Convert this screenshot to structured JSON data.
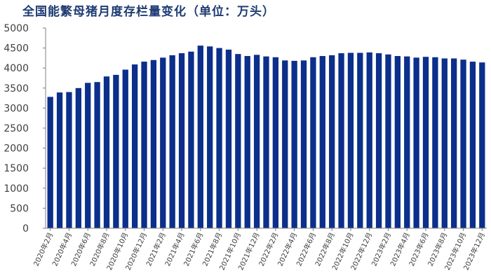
{
  "chart_data": {
    "type": "bar",
    "title": "全国能繁母猪月度存栏量变化（单位：万头）",
    "xlabel": "",
    "ylabel": "",
    "ylim": [
      0,
      5000
    ],
    "yticks": [
      0,
      500,
      1000,
      1500,
      2000,
      2500,
      3000,
      3500,
      4000,
      4500,
      5000
    ],
    "grid": false,
    "legend": "none",
    "bar_color": "#0b2f8a",
    "categories": [
      "2020年2月",
      "2020年3月",
      "2020年4月",
      "2020年5月",
      "2020年6月",
      "2020年7月",
      "2020年8月",
      "2020年9月",
      "2020年10月",
      "2020年11月",
      "2020年12月",
      "2021年1月",
      "2021年2月",
      "2021年3月",
      "2021年4月",
      "2021年5月",
      "2021年6月",
      "2021年7月",
      "2021年8月",
      "2021年9月",
      "2021年10月",
      "2021年11月",
      "2021年12月",
      "2022年1月",
      "2022年2月",
      "2022年3月",
      "2022年4月",
      "2022年5月",
      "2022年6月",
      "2022年7月",
      "2022年8月",
      "2022年9月",
      "2022年10月",
      "2022年11月",
      "2022年12月",
      "2023年1月",
      "2023年2月",
      "2023年3月",
      "2023年4月",
      "2023年5月",
      "2023年6月",
      "2023年7月",
      "2023年8月",
      "2023年9月",
      "2023年10月",
      "2023年11月",
      "2023年12月"
    ],
    "x_tick_labels": [
      "2020年2月",
      "2020年4月",
      "2020年6月",
      "2020年8月",
      "2020年10月",
      "2020年12月",
      "2021年2月",
      "2021年4月",
      "2021年6月",
      "2021年8月",
      "2021年10月",
      "2021年12月",
      "2022年2月",
      "2022年4月",
      "2022年6月",
      "2022年8月",
      "2022年10月",
      "2022年12月",
      "2023年2月",
      "2023年4月",
      "2023年6月",
      "2023年8月",
      "2023年10月",
      "2023年12月"
    ],
    "values": [
      3280,
      3390,
      3400,
      3500,
      3630,
      3650,
      3790,
      3830,
      3960,
      4090,
      4160,
      4200,
      4260,
      4320,
      4370,
      4410,
      4560,
      4540,
      4500,
      4460,
      4350,
      4300,
      4330,
      4290,
      4270,
      4190,
      4180,
      4190,
      4270,
      4300,
      4320,
      4370,
      4380,
      4380,
      4390,
      4370,
      4340,
      4300,
      4290,
      4260,
      4280,
      4270,
      4240,
      4240,
      4210,
      4160,
      4140
    ]
  }
}
